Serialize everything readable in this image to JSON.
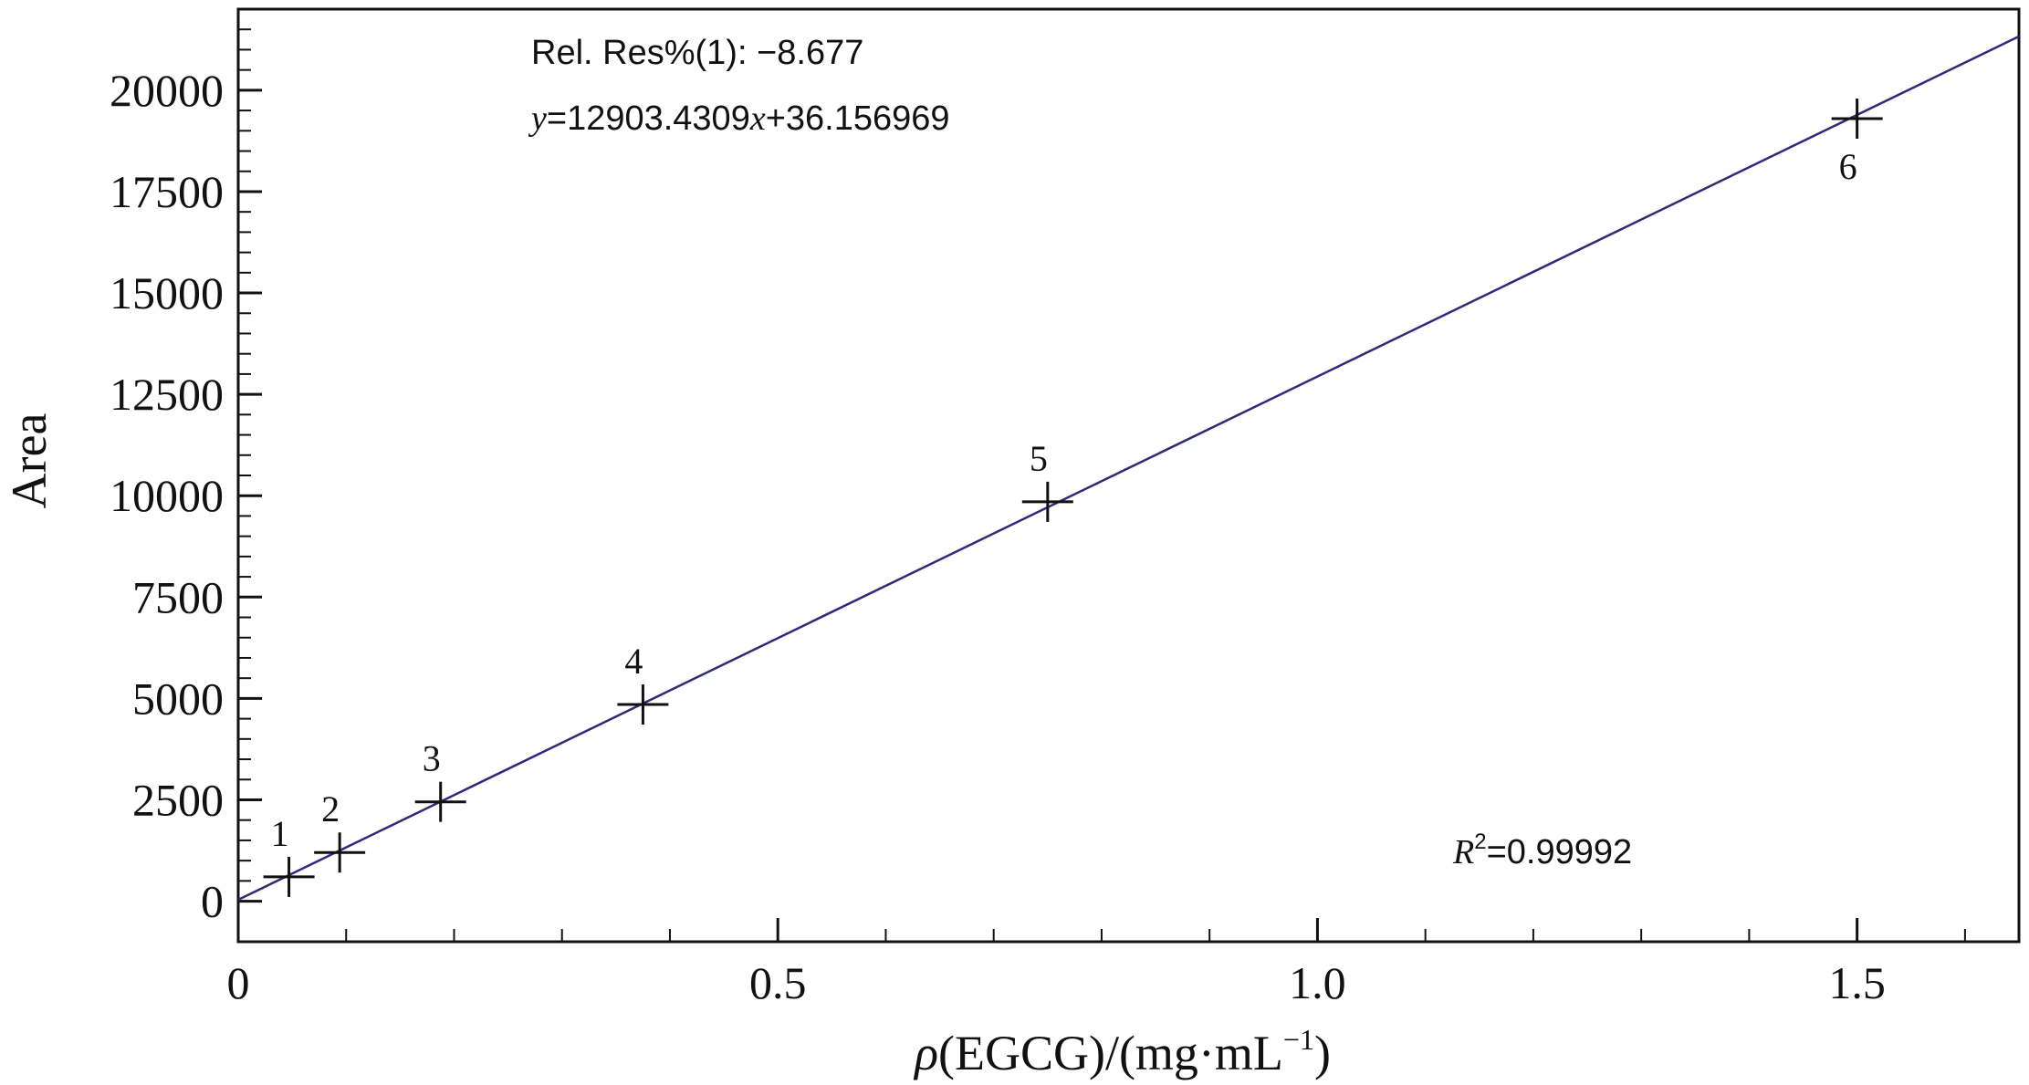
{
  "chart_data": {
    "type": "scatter",
    "xlabel_parts": [
      "ρ",
      "(EGCG)/(mg·mL",
      "−1",
      ")"
    ],
    "ylabel": "Area",
    "xlim": [
      0,
      1.65
    ],
    "ylim": [
      -1000,
      22000
    ],
    "x_ticks": [
      0,
      0.5,
      1.0,
      1.5
    ],
    "x_tick_labels": [
      "0",
      "0.5",
      "1.0",
      "1.5"
    ],
    "x_minor_step": 0.1,
    "y_ticks": [
      0,
      2500,
      5000,
      7500,
      10000,
      12500,
      15000,
      17500,
      20000
    ],
    "y_tick_labels": [
      "0",
      "2500",
      "5000",
      "7500",
      "10000",
      "12500",
      "15000",
      "17500",
      "20000"
    ],
    "y_minor_step": 500,
    "grid": false,
    "points": [
      {
        "label": "1",
        "x": 0.047,
        "y": 600
      },
      {
        "label": "2",
        "x": 0.094,
        "y": 1200
      },
      {
        "label": "3",
        "x": 0.1875,
        "y": 2450
      },
      {
        "label": "4",
        "x": 0.375,
        "y": 4850
      },
      {
        "label": "5",
        "x": 0.75,
        "y": 9850
      },
      {
        "label": "6",
        "x": 1.5,
        "y": 19300
      }
    ],
    "fit_line": {
      "slope": 12903.4309,
      "intercept": 36.156969,
      "color": "#2e2a7a"
    },
    "annotations": {
      "rel_res": "Rel. Res%(1): −8.677",
      "equation_parts": [
        "y",
        "=12903.4309",
        "x",
        "+36.156969"
      ],
      "r2_parts": [
        "R",
        "2",
        "=0.99992"
      ]
    }
  }
}
